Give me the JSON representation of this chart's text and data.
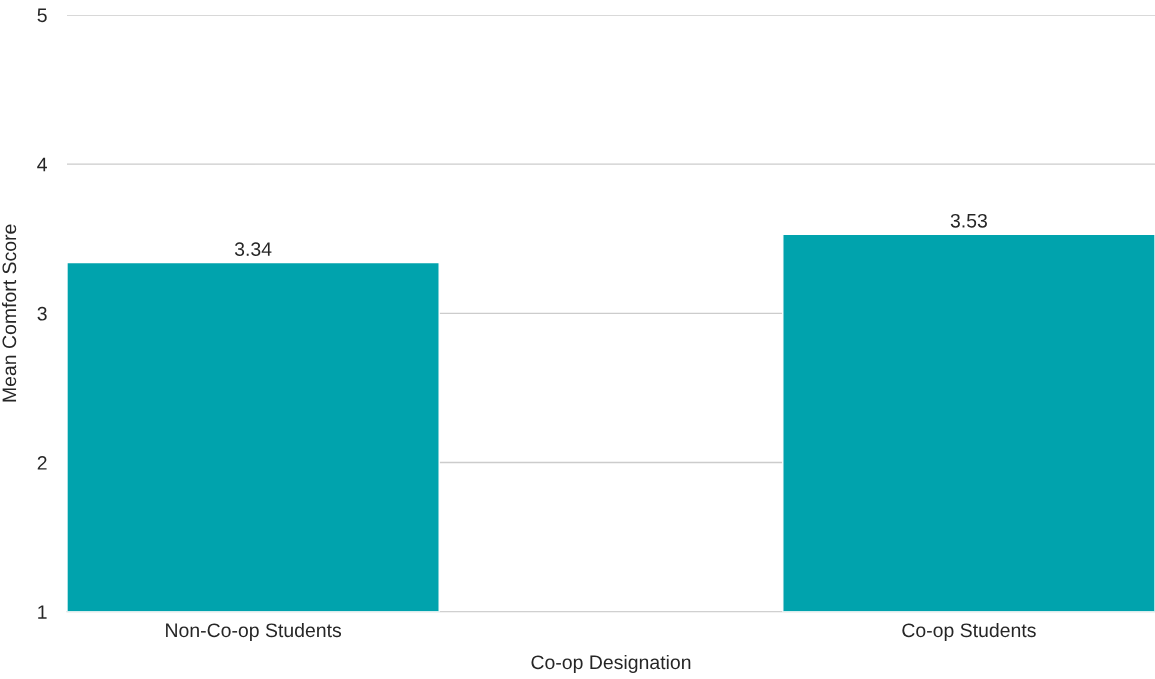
{
  "chart_data": {
    "type": "bar",
    "xlabel": "Co-op Designation",
    "ylabel": "Mean Comfort Score",
    "categories": [
      "Non-Co-op Students",
      "Co-op Students"
    ],
    "values": [
      3.34,
      3.53
    ],
    "color": "#00a3ad",
    "ylim": [
      1,
      5
    ],
    "yticks": [
      1,
      2,
      3,
      4,
      5
    ],
    "grid": "y",
    "data_labels": true
  }
}
